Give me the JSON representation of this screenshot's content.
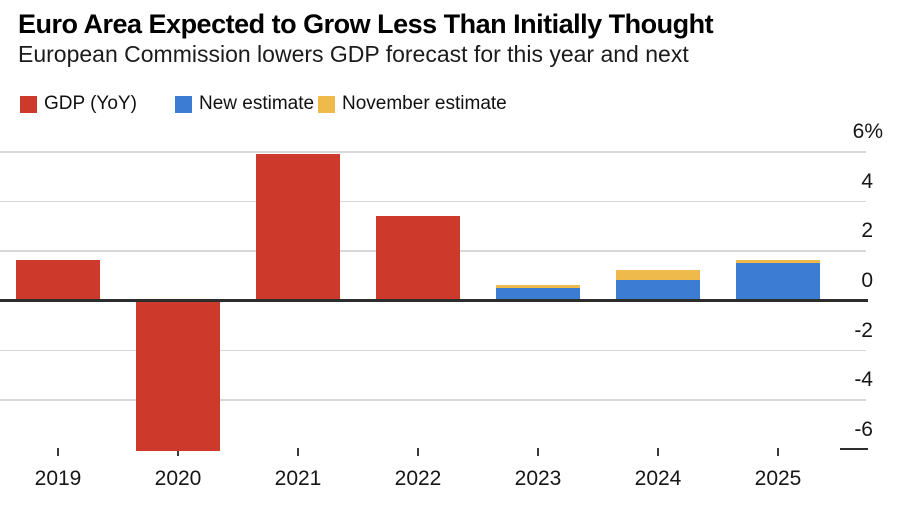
{
  "page": {
    "background": "#ffffff"
  },
  "chart_data": {
    "type": "bar",
    "title": "Euro Area Expected to Grow Less Than Initially Thought",
    "subtitle": "European Commission lowers GDP forecast for this year and next",
    "categories": [
      "2019",
      "2020",
      "2021",
      "2022",
      "2023",
      "2024",
      "2025"
    ],
    "bar_mode": "overlay",
    "series": [
      {
        "name": "GDP (YoY)",
        "color": "#cd3a2c",
        "values": [
          1.6,
          -6.1,
          5.9,
          3.4,
          null,
          null,
          null
        ]
      },
      {
        "name": "November estimate",
        "color": "#eeba4b",
        "values": [
          null,
          null,
          null,
          null,
          0.6,
          1.2,
          1.6
        ]
      },
      {
        "name": "New estimate",
        "color": "#3c7cd2",
        "values": [
          null,
          null,
          null,
          null,
          0.5,
          0.8,
          1.5
        ]
      }
    ],
    "legend": [
      {
        "label": "GDP (YoY)",
        "color": "#cd3a2c"
      },
      {
        "label": "New estimate",
        "color": "#3c7cd2"
      },
      {
        "label": "November estimate",
        "color": "#eeba4b"
      }
    ],
    "legend_position": "top-left",
    "y_axis": {
      "side": "right",
      "unit": "%",
      "ylim": [
        -6.6,
        6.4
      ],
      "grid": true,
      "ticks": [
        {
          "value": 6,
          "label": "6%"
        },
        {
          "value": 4,
          "label": "4"
        },
        {
          "value": 2,
          "label": "2"
        },
        {
          "value": 0,
          "label": "0"
        },
        {
          "value": -2,
          "label": "-2"
        },
        {
          "value": -4,
          "label": "-4"
        },
        {
          "value": -6,
          "label": "-6"
        }
      ]
    },
    "x_axis": {
      "tick_marks": true
    }
  },
  "colors": {
    "grid": "#d8d8d8",
    "baseline": "#2d2d2d",
    "tick": "#3a3a3a",
    "title_text": "#000000",
    "body_text": "#161616"
  }
}
